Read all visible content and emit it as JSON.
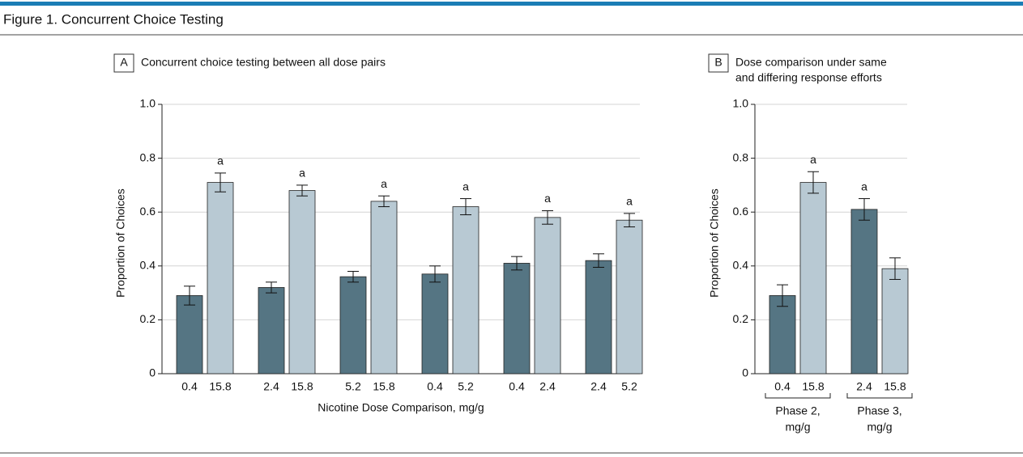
{
  "title": "Figure 1. Concurrent Choice Testing",
  "chart_data": [
    {
      "type": "bar",
      "label": "A",
      "title": [
        "Concurrent choice testing between all dose pairs"
      ],
      "xlabel": "Nicotine Dose Comparison, mg/g",
      "ylabel": "Proportion of Choices",
      "categories": [
        [
          "0.4",
          "15.8"
        ],
        [
          "2.4",
          "15.8"
        ],
        [
          "5.2",
          "15.8"
        ],
        [
          "0.4",
          "5.2"
        ],
        [
          "0.4",
          "2.4"
        ],
        [
          "2.4",
          "5.2"
        ]
      ],
      "series": [
        {
          "color": "#557583",
          "values": [
            0.29,
            0.32,
            0.36,
            0.37,
            0.41,
            0.42
          ],
          "errors": [
            0.035,
            0.02,
            0.02,
            0.03,
            0.025,
            0.025
          ]
        },
        {
          "color": "#b8c9d3",
          "values": [
            0.71,
            0.68,
            0.64,
            0.62,
            0.58,
            0.57
          ],
          "errors": [
            0.035,
            0.02,
            0.02,
            0.03,
            0.025,
            0.025
          ],
          "annotations": [
            "a",
            "a",
            "a",
            "a",
            "a",
            "a"
          ]
        }
      ],
      "ylim": [
        0,
        1
      ],
      "yticks": [
        0,
        0.2,
        0.4,
        0.6,
        0.8,
        {
          "value": 1,
          "label": "1.0"
        }
      ],
      "grid": true
    },
    {
      "type": "bar",
      "label": "B",
      "title": [
        "Dose comparison under same",
        "and differing response efforts"
      ],
      "ylabel": "Proportion of Choices",
      "categories": [
        [
          "0.4",
          "15.8"
        ],
        [
          "2.4",
          "15.8"
        ]
      ],
      "groups": [
        [
          "Phase 2,",
          "mg/g"
        ],
        [
          "Phase 3,",
          "mg/g"
        ]
      ],
      "series": [
        {
          "color": "#557583",
          "values": [
            0.29,
            0.61
          ],
          "errors": [
            0.04,
            0.04
          ],
          "annotations": [
            null,
            "a"
          ]
        },
        {
          "color": "#b8c9d3",
          "values": [
            0.71,
            0.39
          ],
          "errors": [
            0.04,
            0.04
          ],
          "annotations": [
            "a",
            null
          ]
        }
      ],
      "ylim": [
        0,
        1
      ],
      "yticks": [
        0,
        0.2,
        0.4,
        0.6,
        0.8,
        {
          "value": 1,
          "label": "1.0"
        }
      ],
      "grid": true
    }
  ]
}
